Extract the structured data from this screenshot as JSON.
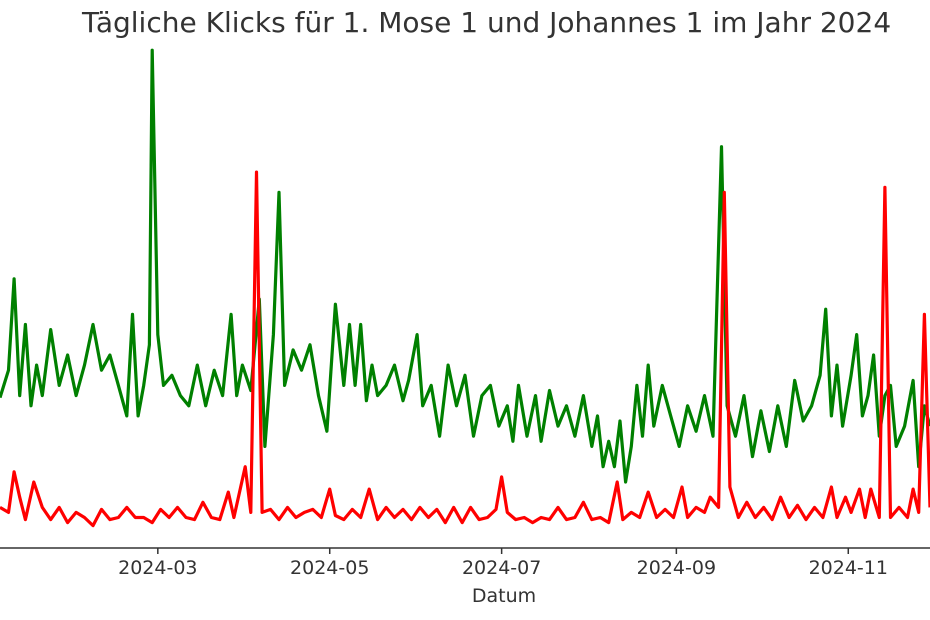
{
  "chart_data": {
    "type": "line",
    "title": "Tägliche Klicks für 1. Mose 1 und Johannes 1 im Jahr 2024",
    "xlabel": "Datum",
    "ylabel": "",
    "x_ticks": [
      "2024-03",
      "2024-05",
      "2024-07",
      "2024-09",
      "2024-11"
    ],
    "xlim": [
      "2024-01-05",
      "2024-11-30"
    ],
    "ylim": [
      0,
      500
    ],
    "grid": false,
    "legend": "none",
    "series": [
      {
        "color": "#008000",
        "points": [
          [
            "2024-01-05",
            148
          ],
          [
            "2024-01-08",
            175
          ],
          [
            "2024-01-10",
            265
          ],
          [
            "2024-01-12",
            150
          ],
          [
            "2024-01-14",
            220
          ],
          [
            "2024-01-16",
            140
          ],
          [
            "2024-01-18",
            180
          ],
          [
            "2024-01-20",
            150
          ],
          [
            "2024-01-23",
            215
          ],
          [
            "2024-01-26",
            160
          ],
          [
            "2024-01-29",
            190
          ],
          [
            "2024-02-01",
            150
          ],
          [
            "2024-02-04",
            180
          ],
          [
            "2024-02-07",
            220
          ],
          [
            "2024-02-10",
            175
          ],
          [
            "2024-02-13",
            190
          ],
          [
            "2024-02-16",
            160
          ],
          [
            "2024-02-19",
            130
          ],
          [
            "2024-02-21",
            230
          ],
          [
            "2024-02-23",
            130
          ],
          [
            "2024-02-25",
            160
          ],
          [
            "2024-02-27",
            200
          ],
          [
            "2024-02-28",
            490
          ],
          [
            "2024-03-01",
            210
          ],
          [
            "2024-03-03",
            160
          ],
          [
            "2024-03-06",
            170
          ],
          [
            "2024-03-09",
            150
          ],
          [
            "2024-03-12",
            140
          ],
          [
            "2024-03-15",
            180
          ],
          [
            "2024-03-18",
            140
          ],
          [
            "2024-03-21",
            175
          ],
          [
            "2024-03-24",
            150
          ],
          [
            "2024-03-27",
            230
          ],
          [
            "2024-03-29",
            150
          ],
          [
            "2024-03-31",
            180
          ],
          [
            "2024-04-03",
            155
          ],
          [
            "2024-04-06",
            245
          ],
          [
            "2024-04-08",
            100
          ],
          [
            "2024-04-11",
            210
          ],
          [
            "2024-04-13",
            350
          ],
          [
            "2024-04-15",
            160
          ],
          [
            "2024-04-18",
            195
          ],
          [
            "2024-04-21",
            175
          ],
          [
            "2024-04-24",
            200
          ],
          [
            "2024-04-27",
            150
          ],
          [
            "2024-04-30",
            115
          ],
          [
            "2024-05-03",
            240
          ],
          [
            "2024-05-06",
            160
          ],
          [
            "2024-05-08",
            220
          ],
          [
            "2024-05-10",
            160
          ],
          [
            "2024-05-12",
            220
          ],
          [
            "2024-05-14",
            145
          ],
          [
            "2024-05-16",
            180
          ],
          [
            "2024-05-18",
            150
          ],
          [
            "2024-05-21",
            160
          ],
          [
            "2024-05-24",
            180
          ],
          [
            "2024-05-27",
            145
          ],
          [
            "2024-05-29",
            165
          ],
          [
            "2024-06-01",
            210
          ],
          [
            "2024-06-03",
            140
          ],
          [
            "2024-06-06",
            160
          ],
          [
            "2024-06-09",
            110
          ],
          [
            "2024-06-12",
            180
          ],
          [
            "2024-06-15",
            140
          ],
          [
            "2024-06-18",
            170
          ],
          [
            "2024-06-21",
            110
          ],
          [
            "2024-06-24",
            150
          ],
          [
            "2024-06-27",
            160
          ],
          [
            "2024-06-30",
            120
          ],
          [
            "2024-07-03",
            140
          ],
          [
            "2024-07-05",
            105
          ],
          [
            "2024-07-07",
            160
          ],
          [
            "2024-07-10",
            110
          ],
          [
            "2024-07-13",
            150
          ],
          [
            "2024-07-15",
            105
          ],
          [
            "2024-07-18",
            155
          ],
          [
            "2024-07-21",
            120
          ],
          [
            "2024-07-24",
            140
          ],
          [
            "2024-07-27",
            110
          ],
          [
            "2024-07-30",
            150
          ],
          [
            "2024-08-02",
            100
          ],
          [
            "2024-08-04",
            130
          ],
          [
            "2024-08-06",
            80
          ],
          [
            "2024-08-08",
            105
          ],
          [
            "2024-08-10",
            80
          ],
          [
            "2024-08-12",
            125
          ],
          [
            "2024-08-14",
            65
          ],
          [
            "2024-08-16",
            100
          ],
          [
            "2024-08-18",
            160
          ],
          [
            "2024-08-20",
            110
          ],
          [
            "2024-08-22",
            180
          ],
          [
            "2024-08-24",
            120
          ],
          [
            "2024-08-27",
            160
          ],
          [
            "2024-08-30",
            130
          ],
          [
            "2024-09-02",
            100
          ],
          [
            "2024-09-05",
            140
          ],
          [
            "2024-09-08",
            115
          ],
          [
            "2024-09-11",
            150
          ],
          [
            "2024-09-14",
            110
          ],
          [
            "2024-09-17",
            395
          ],
          [
            "2024-09-19",
            140
          ],
          [
            "2024-09-22",
            110
          ],
          [
            "2024-09-25",
            150
          ],
          [
            "2024-09-28",
            90
          ],
          [
            "2024-10-01",
            135
          ],
          [
            "2024-10-04",
            95
          ],
          [
            "2024-10-07",
            140
          ],
          [
            "2024-10-10",
            100
          ],
          [
            "2024-10-13",
            165
          ],
          [
            "2024-10-16",
            125
          ],
          [
            "2024-10-19",
            140
          ],
          [
            "2024-10-22",
            170
          ],
          [
            "2024-10-24",
            235
          ],
          [
            "2024-10-26",
            130
          ],
          [
            "2024-10-28",
            180
          ],
          [
            "2024-10-30",
            120
          ],
          [
            "2024-11-02",
            170
          ],
          [
            "2024-11-04",
            210
          ],
          [
            "2024-11-06",
            130
          ],
          [
            "2024-11-08",
            150
          ],
          [
            "2024-11-10",
            190
          ],
          [
            "2024-11-12",
            110
          ],
          [
            "2024-11-14",
            150
          ],
          [
            "2024-11-16",
            160
          ],
          [
            "2024-11-18",
            100
          ],
          [
            "2024-11-21",
            120
          ],
          [
            "2024-11-24",
            165
          ],
          [
            "2024-11-26",
            80
          ],
          [
            "2024-11-28",
            140
          ],
          [
            "2024-11-30",
            120
          ]
        ]
      },
      {
        "color": "#ff0000",
        "points": [
          [
            "2024-01-05",
            40
          ],
          [
            "2024-01-08",
            35
          ],
          [
            "2024-01-10",
            75
          ],
          [
            "2024-01-12",
            50
          ],
          [
            "2024-01-14",
            28
          ],
          [
            "2024-01-17",
            65
          ],
          [
            "2024-01-20",
            40
          ],
          [
            "2024-01-23",
            28
          ],
          [
            "2024-01-26",
            40
          ],
          [
            "2024-01-29",
            25
          ],
          [
            "2024-02-01",
            35
          ],
          [
            "2024-02-04",
            30
          ],
          [
            "2024-02-07",
            22
          ],
          [
            "2024-02-10",
            38
          ],
          [
            "2024-02-13",
            28
          ],
          [
            "2024-02-16",
            30
          ],
          [
            "2024-02-19",
            40
          ],
          [
            "2024-02-22",
            30
          ],
          [
            "2024-02-25",
            30
          ],
          [
            "2024-02-28",
            25
          ],
          [
            "2024-03-02",
            38
          ],
          [
            "2024-03-05",
            30
          ],
          [
            "2024-03-08",
            40
          ],
          [
            "2024-03-11",
            30
          ],
          [
            "2024-03-14",
            28
          ],
          [
            "2024-03-17",
            45
          ],
          [
            "2024-03-20",
            30
          ],
          [
            "2024-03-23",
            28
          ],
          [
            "2024-03-26",
            55
          ],
          [
            "2024-03-28",
            30
          ],
          [
            "2024-04-01",
            80
          ],
          [
            "2024-04-03",
            35
          ],
          [
            "2024-04-05",
            370
          ],
          [
            "2024-04-07",
            35
          ],
          [
            "2024-04-10",
            38
          ],
          [
            "2024-04-13",
            28
          ],
          [
            "2024-04-16",
            40
          ],
          [
            "2024-04-19",
            30
          ],
          [
            "2024-04-22",
            35
          ],
          [
            "2024-04-25",
            38
          ],
          [
            "2024-04-28",
            30
          ],
          [
            "2024-05-01",
            58
          ],
          [
            "2024-05-03",
            32
          ],
          [
            "2024-05-06",
            28
          ],
          [
            "2024-05-09",
            38
          ],
          [
            "2024-05-12",
            30
          ],
          [
            "2024-05-15",
            58
          ],
          [
            "2024-05-18",
            28
          ],
          [
            "2024-05-21",
            40
          ],
          [
            "2024-05-24",
            30
          ],
          [
            "2024-05-27",
            38
          ],
          [
            "2024-05-30",
            28
          ],
          [
            "2024-06-02",
            40
          ],
          [
            "2024-06-05",
            30
          ],
          [
            "2024-06-08",
            38
          ],
          [
            "2024-06-11",
            25
          ],
          [
            "2024-06-14",
            40
          ],
          [
            "2024-06-17",
            25
          ],
          [
            "2024-06-20",
            40
          ],
          [
            "2024-06-23",
            28
          ],
          [
            "2024-06-26",
            30
          ],
          [
            "2024-06-29",
            38
          ],
          [
            "2024-07-01",
            70
          ],
          [
            "2024-07-03",
            35
          ],
          [
            "2024-07-06",
            28
          ],
          [
            "2024-07-09",
            30
          ],
          [
            "2024-07-12",
            25
          ],
          [
            "2024-07-15",
            30
          ],
          [
            "2024-07-18",
            28
          ],
          [
            "2024-07-21",
            40
          ],
          [
            "2024-07-24",
            28
          ],
          [
            "2024-07-27",
            30
          ],
          [
            "2024-07-30",
            45
          ],
          [
            "2024-08-02",
            28
          ],
          [
            "2024-08-05",
            30
          ],
          [
            "2024-08-08",
            25
          ],
          [
            "2024-08-11",
            65
          ],
          [
            "2024-08-13",
            28
          ],
          [
            "2024-08-16",
            35
          ],
          [
            "2024-08-19",
            30
          ],
          [
            "2024-08-22",
            55
          ],
          [
            "2024-08-25",
            30
          ],
          [
            "2024-08-28",
            38
          ],
          [
            "2024-08-31",
            30
          ],
          [
            "2024-09-03",
            60
          ],
          [
            "2024-09-05",
            30
          ],
          [
            "2024-09-08",
            40
          ],
          [
            "2024-09-11",
            35
          ],
          [
            "2024-09-13",
            50
          ],
          [
            "2024-09-16",
            40
          ],
          [
            "2024-09-18",
            350
          ],
          [
            "2024-09-20",
            60
          ],
          [
            "2024-09-23",
            30
          ],
          [
            "2024-09-26",
            45
          ],
          [
            "2024-09-29",
            30
          ],
          [
            "2024-10-02",
            40
          ],
          [
            "2024-10-05",
            28
          ],
          [
            "2024-10-08",
            50
          ],
          [
            "2024-10-11",
            30
          ],
          [
            "2024-10-14",
            42
          ],
          [
            "2024-10-17",
            28
          ],
          [
            "2024-10-20",
            40
          ],
          [
            "2024-10-23",
            30
          ],
          [
            "2024-10-26",
            60
          ],
          [
            "2024-10-28",
            30
          ],
          [
            "2024-10-31",
            50
          ],
          [
            "2024-11-02",
            35
          ],
          [
            "2024-11-05",
            58
          ],
          [
            "2024-11-07",
            30
          ],
          [
            "2024-11-09",
            58
          ],
          [
            "2024-11-12",
            30
          ],
          [
            "2024-11-14",
            355
          ],
          [
            "2024-11-16",
            30
          ],
          [
            "2024-11-19",
            40
          ],
          [
            "2024-11-22",
            30
          ],
          [
            "2024-11-24",
            58
          ],
          [
            "2024-11-26",
            35
          ],
          [
            "2024-11-28",
            230
          ],
          [
            "2024-11-30",
            40
          ]
        ]
      }
    ]
  }
}
